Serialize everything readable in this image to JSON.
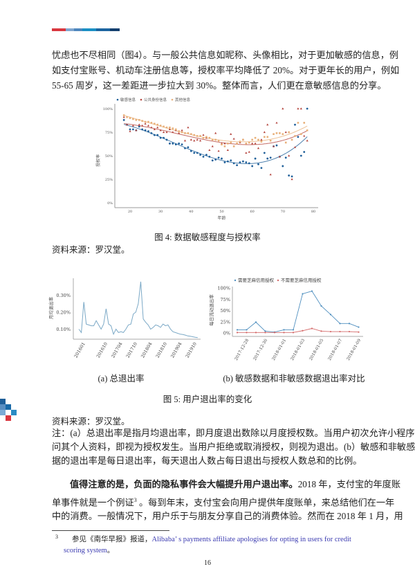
{
  "colors": {
    "accent_red": "#d9363e",
    "accent_blue": "#1f5f99",
    "link": "#3a3ab0",
    "sensitive": "#1f5f99",
    "public": "#b5463f",
    "other": "#e8b07a",
    "line_total": "#7aa8c6"
  },
  "paragraph1": [
    "忧虑也不尽相同（图4）。与一般公共信息如昵称、头像相比，对于更加敏感的信息，例",
    "如支付宝账号、机动车注册信息等，授权率平均降低了 20%。对于更年长的用户，例如",
    "55-65 周岁，这一差距进一步拉大到 30%。整体而言，人们更在意敏感信息的分享。"
  ],
  "figure4": {
    "caption": "图 4: 数据敏感程度与授权率",
    "source": "资料来源：罗汉堂。"
  },
  "figure5": {
    "sub_a": "(a) 总退出率",
    "sub_b": "(b) 敏感数据和非敏感数据退出率对比",
    "caption": "图 5: 用户退出率的变化",
    "source": "资料来源：罗汉堂。",
    "note": [
      "注：(a）总退出率是指月均退出率，即月度退出数除以月度授权数。当用户初次允许小程序访",
      "问其个人资料，即视为授权发生。当用户拒绝或取消授权，则视为退出。(b）敏感和非敏感数",
      "据的退出率是每日退出率，每天退出人数占每日退出与授权人数总和的比例。"
    ]
  },
  "paragraph2": {
    "bold": "值得注意的是，负面的隐私事件会大幅提升用户退出率。",
    "line1_rest": "2018 年，支付宝的年度账",
    "line2_a": "单事件就是一个例证",
    "footnote_ref": "3",
    "line2_b": " 。每到年末，支付宝会向用户提供年度账单，来总结他们在一年",
    "line3": "中的消费。一般情况下，用户乐于与朋友分享自己的消费体验。然而在 2018 年 1 月，用"
  },
  "footnote": {
    "mark": "3",
    "prefix": "参见《南华早报》报道，",
    "link_text_1": "Alibaba’ s payments affiliate apologises for opting in users for credit scoring",
    "link_text_2": "system",
    "suffix": "。"
  },
  "page_number": "16",
  "chart_data": [
    {
      "type": "scatter",
      "title": "",
      "xlabel": "年龄",
      "ylabel": "授权率",
      "xlim": [
        15,
        81
      ],
      "ylim": [
        0,
        100
      ],
      "xticks": [
        "20",
        "30",
        "40",
        "50",
        "60",
        "70",
        "80"
      ],
      "yticks": [
        "0%",
        "25%",
        "50%",
        "75%",
        "100%"
      ],
      "legend_placement": "top-left",
      "trend": "fitted curve per series",
      "x": [
        18,
        19,
        20,
        21,
        22,
        23,
        24,
        25,
        26,
        27,
        28,
        29,
        30,
        31,
        32,
        33,
        34,
        35,
        36,
        37,
        38,
        39,
        40,
        41,
        42,
        43,
        44,
        45,
        46,
        47,
        48,
        49,
        50,
        51,
        52,
        53,
        54,
        55,
        56,
        57,
        58,
        59,
        60,
        61,
        62,
        63,
        64,
        65,
        66,
        67,
        68,
        69,
        70,
        71,
        72,
        73,
        74,
        75,
        76,
        77,
        78
      ],
      "series": [
        {
          "name": "敏感信息",
          "marker": "circle",
          "color": "#1f5f99",
          "values": [
            88,
            83,
            78,
            78,
            77,
            81,
            78,
            77,
            76,
            74,
            72,
            72,
            69,
            69,
            67,
            63,
            63,
            62,
            63,
            62,
            58,
            59,
            55,
            53,
            53,
            51,
            49,
            51,
            49,
            45,
            46,
            48,
            47,
            43,
            44,
            45,
            42,
            40,
            43,
            44,
            43,
            42,
            39,
            47,
            41,
            37,
            53,
            47,
            48,
            60,
            61,
            49,
            39,
            48,
            29,
            28,
            83,
            70,
            50,
            54,
            100
          ]
        },
        {
          "name": "公共身份信息",
          "marker": "triangle",
          "color": "#b5463f",
          "values": [
            91,
            83,
            76,
            82,
            77,
            83,
            82,
            84,
            82,
            80,
            78,
            80,
            77,
            75,
            75,
            78,
            75,
            77,
            74,
            77,
            66,
            80,
            67,
            66,
            67,
            66,
            72,
            69,
            56,
            60,
            74,
            55,
            63,
            63,
            56,
            73,
            68,
            63,
            64,
            67,
            53,
            54,
            63,
            63,
            58,
            67,
            75,
            83,
            30,
            60,
            85,
            49,
            100,
            75,
            50,
            25,
            59,
            100,
            100,
            71,
            66
          ]
        },
        {
          "name": "其他信息",
          "marker": "square",
          "color": "#e8b07a",
          "values": [
            93,
            91,
            90,
            89,
            88,
            88,
            87,
            86,
            86,
            85,
            84,
            83,
            82,
            81,
            80,
            80,
            79,
            78,
            76,
            75,
            74,
            74,
            73,
            72,
            71,
            71,
            69,
            70,
            69,
            67,
            67,
            66,
            62,
            60,
            63,
            64,
            60,
            63,
            65,
            67,
            63,
            64,
            67,
            69,
            67,
            65,
            70,
            70,
            66,
            73,
            74,
            74,
            73,
            64,
            75,
            67,
            71,
            85,
            73,
            85,
            77
          ]
        }
      ]
    },
    {
      "type": "line",
      "title": "",
      "ylabel": "月均退出率",
      "yticks": [
        "0.10%",
        "0.20%",
        "0.30%"
      ],
      "xticks": [
        "201601",
        "201610",
        "201704",
        "201710",
        "201804",
        "201810",
        "201904",
        "201910"
      ],
      "x_start": "201511",
      "x_end": "201911",
      "values": [
        0.1,
        0.08,
        0.26,
        0.13,
        0.125,
        0.12,
        0.12,
        0.15,
        0.125,
        0.1,
        0.13,
        0.22,
        0.13,
        0.12,
        0.07,
        0.1,
        0.08,
        0.085,
        0.08,
        0.1,
        0.125,
        0.13,
        0.19,
        0.2,
        0.25,
        0.38,
        0.16,
        0.14,
        0.125,
        0.1,
        0.11,
        0.125,
        0.12,
        0.11,
        0.13,
        0.12,
        0.125,
        0.1,
        0.085,
        0.08,
        0.075,
        0.07,
        0.068,
        0.065,
        0.06,
        0.058,
        0.055,
        0.052,
        0.05
      ],
      "ylim": [
        0.04,
        0.39
      ]
    },
    {
      "type": "line",
      "title": "",
      "ylabel": "每日流动退出率",
      "yticks": [
        "0%",
        "25%",
        "50%",
        "75%",
        "100%"
      ],
      "ylim": [
        0,
        100
      ],
      "xticks": [
        "2017-12-28",
        "2017-12-30",
        "2018-01-01",
        "2018-01-03",
        "2018-01-05",
        "2018-01-07",
        "2018-01-09"
      ],
      "x": [
        "2017-12-27",
        "2017-12-28",
        "2017-12-29",
        "2017-12-30",
        "2017-12-31",
        "2018-01-01",
        "2018-01-02",
        "2018-01-03",
        "2018-01-04",
        "2018-01-05",
        "2018-01-06",
        "2018-01-07",
        "2018-01-08",
        "2018-01-09"
      ],
      "legend_placement": "top",
      "series": [
        {
          "name": "需要芝麻信用授权",
          "color": "#4f8fbf",
          "values": [
            7,
            7,
            24,
            4,
            2,
            7,
            7,
            87,
            93,
            60,
            41,
            21,
            21,
            13
          ]
        },
        {
          "name": "不需要芝麻信用授权",
          "color": "#d46a6a",
          "values": [
            1,
            1,
            1,
            1,
            1,
            1,
            1,
            5,
            10,
            4,
            3,
            3,
            3,
            2
          ]
        }
      ]
    }
  ]
}
